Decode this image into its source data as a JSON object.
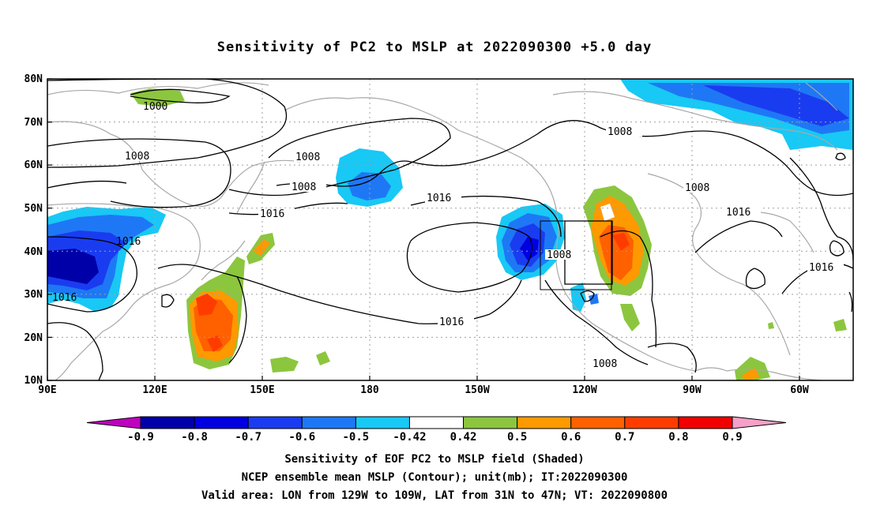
{
  "title": "Sensitivity of PC2 to MSLP at 2022090300 +5.0 day",
  "lat_labels": [
    "80N",
    "70N",
    "60N",
    "50N",
    "40N",
    "30N",
    "20N",
    "10N"
  ],
  "lon_labels": [
    "90E",
    "120E",
    "150E",
    "180",
    "150W",
    "120W",
    "90W",
    "60W"
  ],
  "isobar_labels": [
    "1000",
    "1008",
    "1008",
    "1008",
    "1008",
    "1016",
    "1016",
    "1016",
    "1016",
    "1016",
    "1008",
    "1016",
    "1016",
    "1008"
  ],
  "colorbar": {
    "ticks": [
      "-0.9",
      "-0.8",
      "-0.7",
      "-0.6",
      "-0.5",
      "-0.42",
      "0.42",
      "0.5",
      "0.6",
      "0.7",
      "0.8",
      "0.9"
    ],
    "colors": [
      "#c000c0",
      "#0000a8",
      "#0000e0",
      "#1a3cf0",
      "#1e78f5",
      "#18c8f5",
      "#ffffff",
      "#8cc63e",
      "#ff9900",
      "#ff6000",
      "#ff3c00",
      "#f00000",
      "#f5a0c8"
    ]
  },
  "captions": [
    "Sensitivity of EOF PC2 to MSLP field (Shaded)",
    "NCEP ensemble mean MSLP (Contour); unit(mb); IT:2022090300",
    "Valid area: LON from 129W to 109W, LAT from 31N to 47N; VT: 2022090800"
  ]
}
